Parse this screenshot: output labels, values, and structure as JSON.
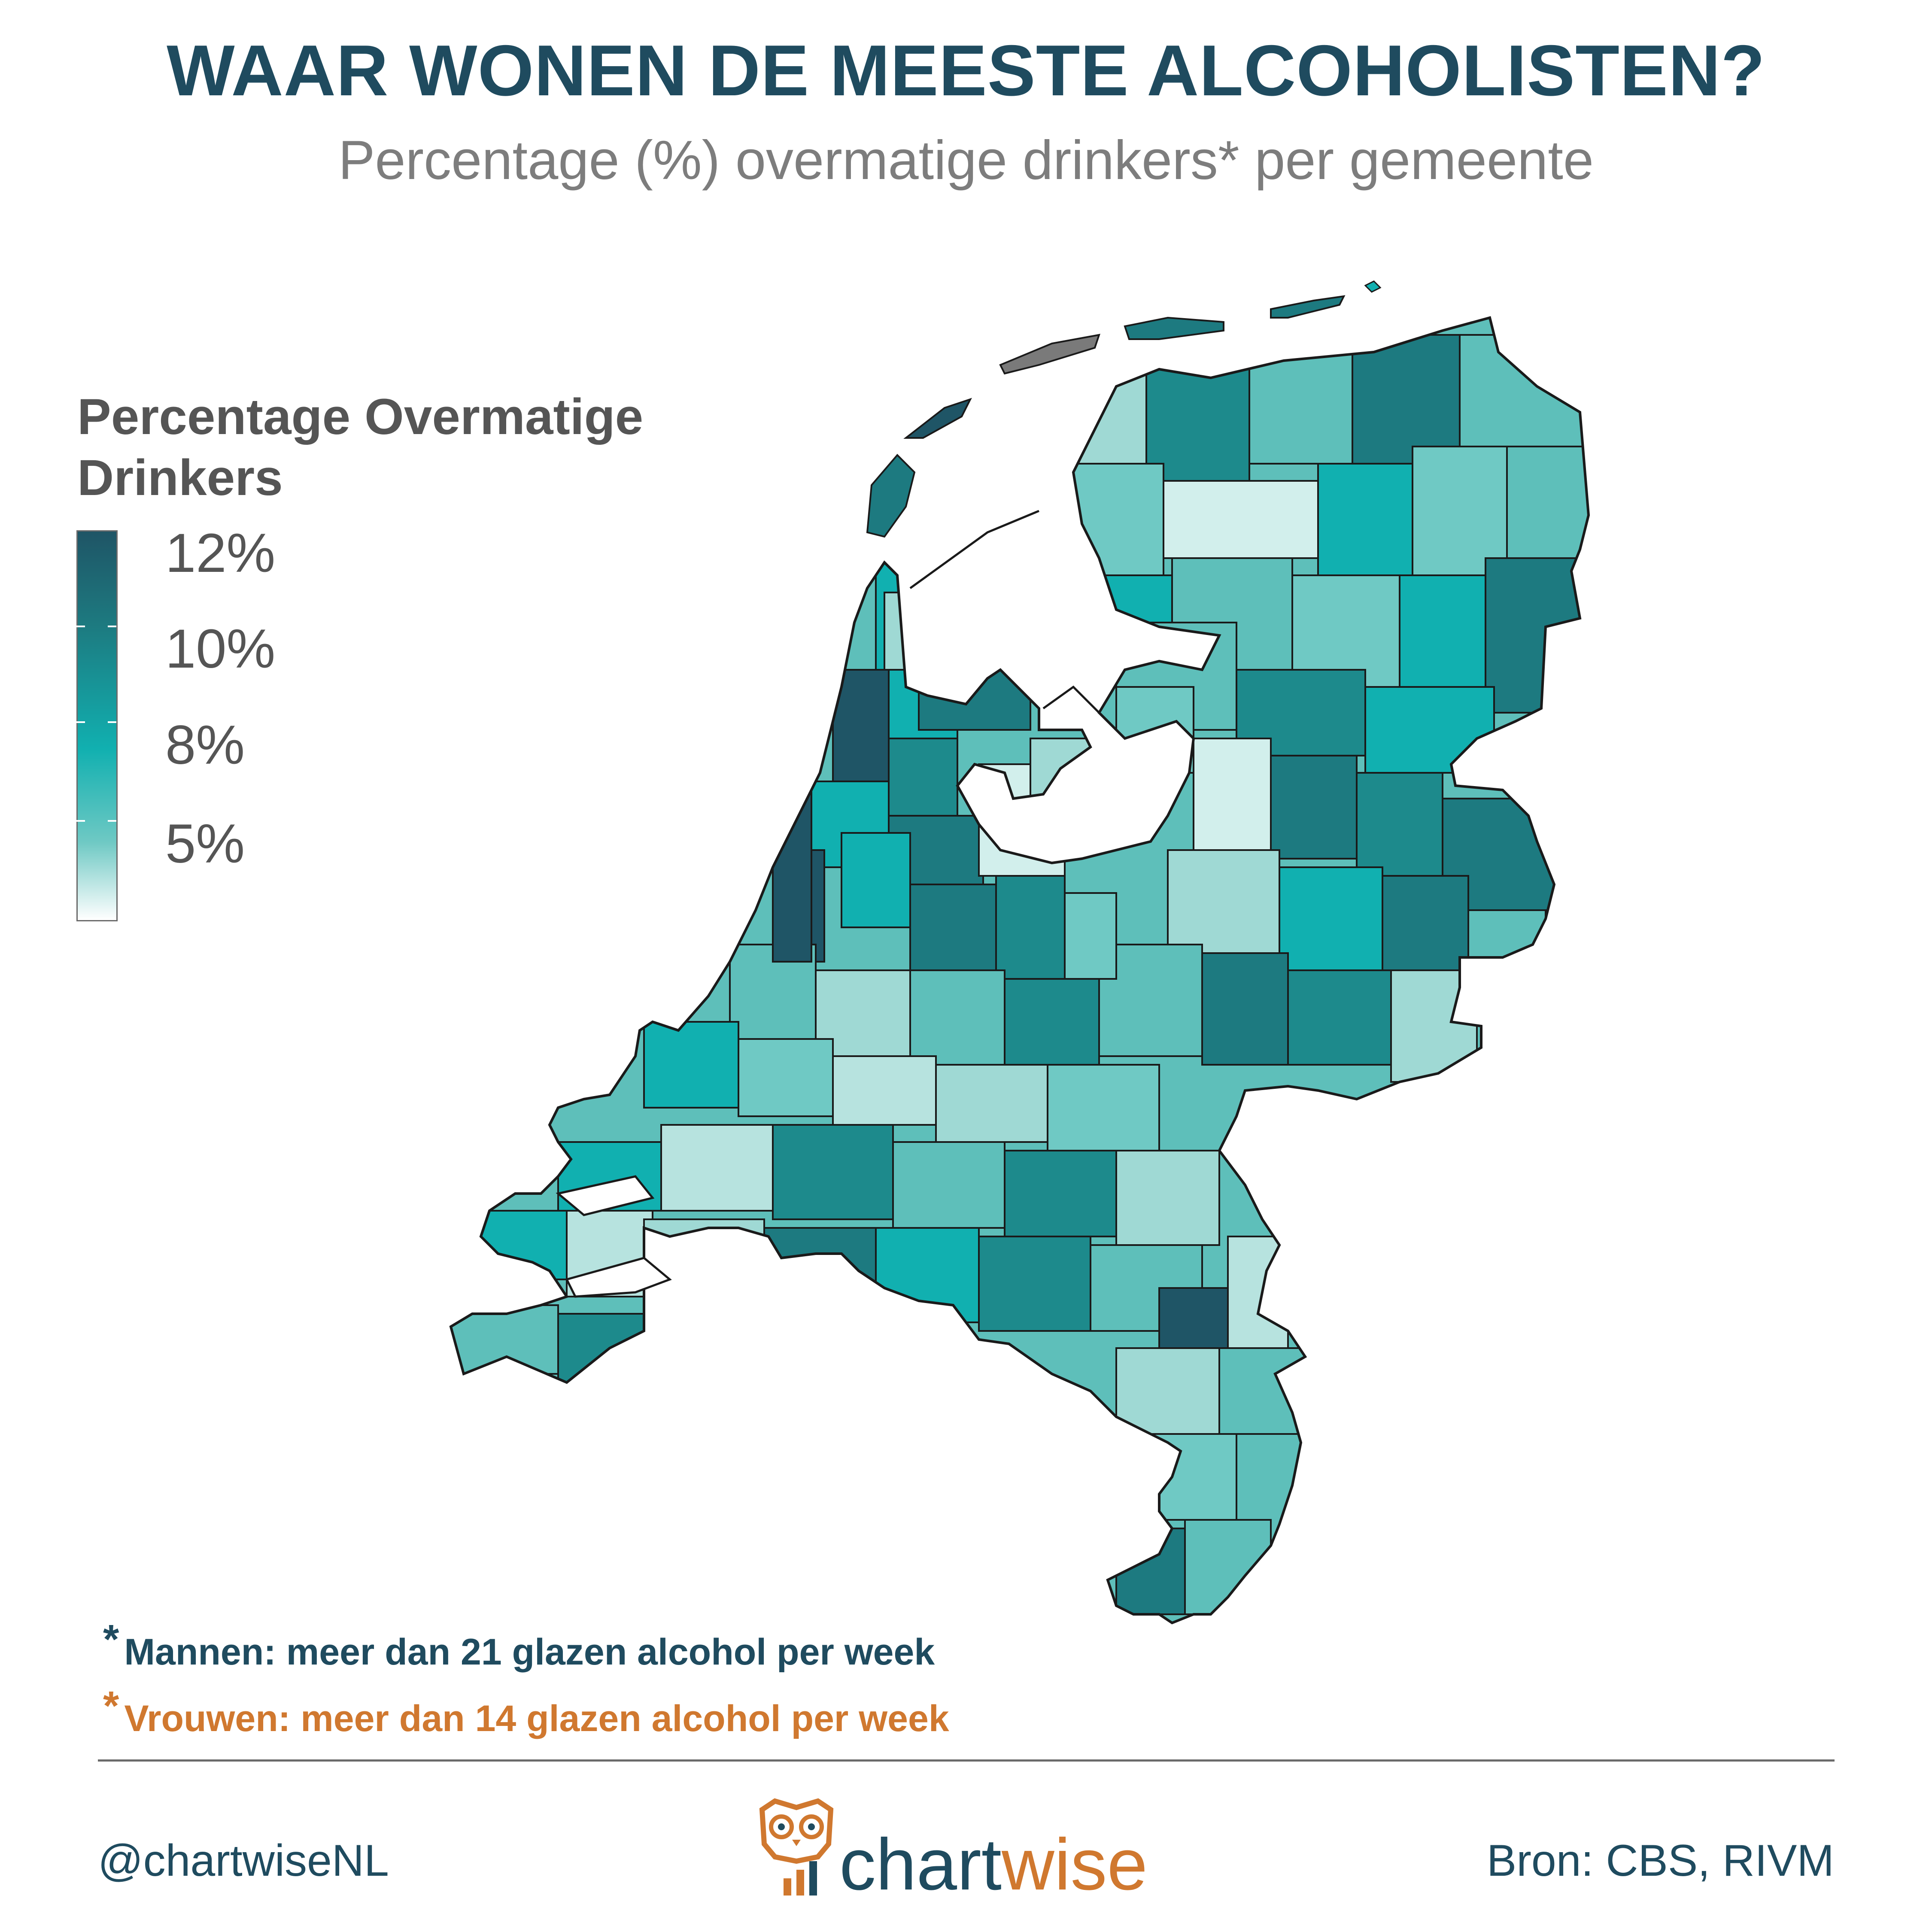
{
  "header": {
    "title": "WAAR WONEN DE MEESTE ALCOHOLISTEN?",
    "subtitle": "Percentage (%) overmatige drinkers* per gemeente"
  },
  "legend": {
    "title": "Percentage Overmatige Drinkers",
    "labels": [
      "12%",
      "10%",
      "8%",
      "5%"
    ],
    "colors": [
      "#1f5566",
      "#1d7a80",
      "#11b0b0",
      "#6fc9c4",
      "#ffffff"
    ]
  },
  "map": {
    "region": "Nederland",
    "unit": "percentage overmatige drinkers per gemeente",
    "no_data_color": "#7a7a7a",
    "border_color": "#1a1a1a"
  },
  "footnotes": {
    "men": "Mannen: meer dan 21 glazen alcohol per week",
    "women": "Vrouwen: meer dan 14 glazen alcohol per week",
    "marker": "*"
  },
  "footer": {
    "handle": "@chartwiseNL",
    "source": "Bron: CBS, RIVM",
    "logo_text_main": "chart",
    "logo_text_accent": "wise"
  },
  "colors": {
    "title": "#1f4b5f",
    "subtitle": "#7d7d7d",
    "accent_orange": "#d0782f"
  }
}
